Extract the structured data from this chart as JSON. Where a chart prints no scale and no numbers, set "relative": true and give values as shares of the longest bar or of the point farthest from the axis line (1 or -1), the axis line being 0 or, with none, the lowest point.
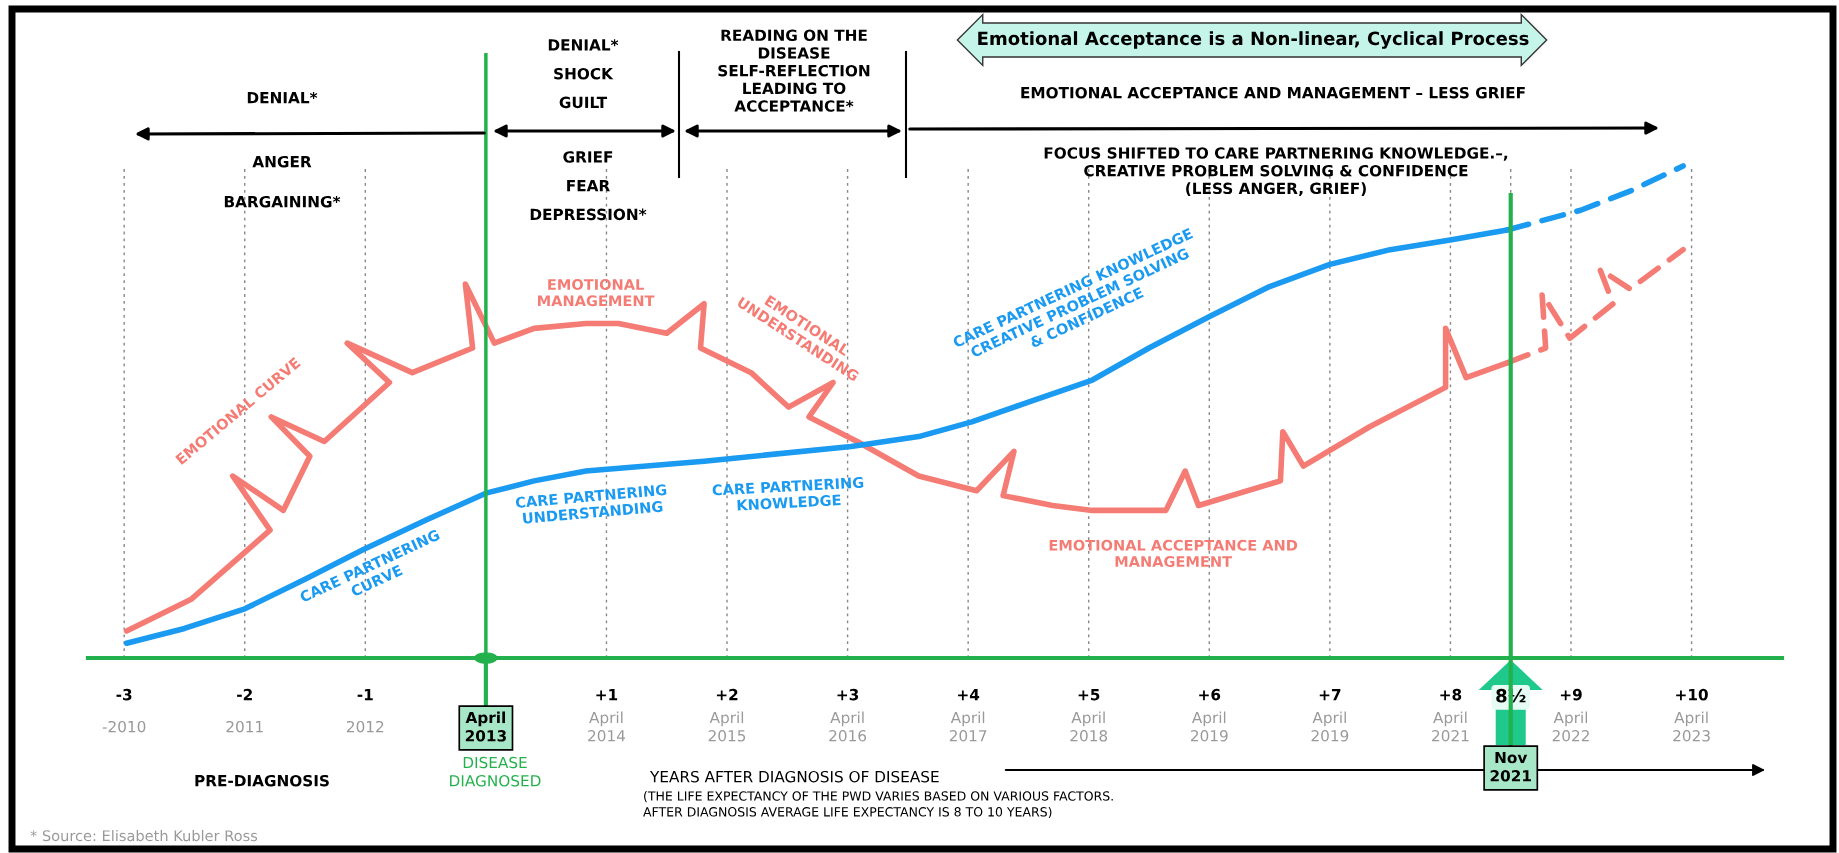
{
  "chart_data": {
    "type": "line",
    "relative": true,
    "xlim": [
      -3.3,
      10.75
    ],
    "xticks": [
      {
        "value": -3,
        "label": "-3"
      },
      {
        "value": -2,
        "label": "-2"
      },
      {
        "value": -1,
        "label": "-1"
      },
      {
        "value": 1,
        "label": "+1"
      },
      {
        "value": 2,
        "label": "+2"
      },
      {
        "value": 3,
        "label": "+3"
      },
      {
        "value": 4,
        "label": "+4"
      },
      {
        "value": 5,
        "label": "+5"
      },
      {
        "value": 6,
        "label": "+6"
      },
      {
        "value": 7,
        "label": "+7"
      },
      {
        "value": 8,
        "label": "+8"
      },
      {
        "value": 8.5,
        "label": "8½"
      },
      {
        "value": 9,
        "label": "+9"
      },
      {
        "value": 10,
        "label": "+10"
      }
    ],
    "grid": "x",
    "series": [
      {
        "name": "EMOTIONAL CURVE",
        "color": "#f47c74",
        "x": [
          -2.98,
          -2.44,
          -1.79,
          -2.1,
          -1.68,
          -1.46,
          -1.78,
          -1.34,
          -0.8,
          -1.15,
          -0.61,
          -0.11,
          -0.17,
          0.07,
          0.4,
          0.83,
          1.1,
          1.5,
          1.81,
          1.78,
          2.2,
          2.51,
          2.88,
          2.68,
          3.08,
          3.59,
          4.07,
          4.38,
          4.29,
          4.7,
          5.03,
          5.64,
          5.8,
          5.91,
          6.59,
          6.61,
          6.78,
          7.33,
          7.96,
          7.96,
          8.13,
          8.47
        ],
        "values": [
          0.055,
          0.12,
          0.26,
          0.37,
          0.3,
          0.41,
          0.49,
          0.44,
          0.56,
          0.64,
          0.58,
          0.63,
          0.76,
          0.64,
          0.67,
          0.68,
          0.68,
          0.66,
          0.72,
          0.63,
          0.58,
          0.51,
          0.56,
          0.49,
          0.44,
          0.37,
          0.34,
          0.42,
          0.33,
          0.31,
          0.3,
          0.3,
          0.38,
          0.31,
          0.36,
          0.46,
          0.39,
          0.47,
          0.55,
          0.67,
          0.57,
          0.6
        ]
      },
      {
        "color": "#f47c74",
        "line_style": "dashed",
        "x": [
          8.47,
          8.79,
          8.76,
          8.99,
          9.35,
          9.24,
          9.49,
          9.93
        ],
        "values": [
          0.6,
          0.63,
          0.74,
          0.65,
          0.72,
          0.79,
          0.75,
          0.83
        ]
      },
      {
        "name": "CARE PARTNERING\nCURVE",
        "color": "#1a9af0",
        "x": [
          -2.98,
          -2.5,
          -2.0,
          -1.5,
          -1.02,
          -0.5,
          0,
          0.4,
          0.83,
          1.81,
          3.03,
          3.59,
          4.03,
          4.5,
          5.03,
          5.5,
          6.01,
          6.5,
          7.0,
          7.5,
          8.01,
          8.47
        ],
        "values": [
          0.03,
          0.06,
          0.1,
          0.16,
          0.22,
          0.28,
          0.335,
          0.36,
          0.38,
          0.4,
          0.43,
          0.45,
          0.48,
          0.52,
          0.565,
          0.63,
          0.695,
          0.755,
          0.8,
          0.83,
          0.85,
          0.87
        ]
      },
      {
        "color": "#1a9af0",
        "line_style": "dashed",
        "x": [
          8.47,
          9.08,
          9.5,
          9.93
        ],
        "values": [
          0.87,
          0.91,
          0.95,
          1.0
        ]
      }
    ],
    "ref_lines": [
      {
        "axis": "x",
        "value": 0,
        "label": "April\n2013",
        "color": "#22b14c"
      },
      {
        "axis": "x",
        "value": 8.5,
        "label": "Nov\n2021",
        "color": "#22b14c"
      }
    ],
    "annotations": [
      "DENIAL*",
      "ANGER",
      "BARGAINING*",
      "DENIAL*\nSHOCK\nGUILT",
      "GRIEF\nFEAR\nDEPRESSION*",
      "READING ON THE\nDISEASE\nSELF-REFLECTION\nLEADING TO\nACCEPTANCE*",
      "Emotional Acceptance is a Non-linear, Cyclical Process",
      "EMOTIONAL ACCEPTANCE AND MANAGEMENT – LESS GRIEF",
      "FOCUS SHIFTED TO CARE PARTNERING KNOWLEDGE.–,\nCREATIVE PROBLEM SOLVING & CONFIDENCE\n(LESS ANGER, GRIEF)",
      "PRE-DIAGNOSIS",
      "DISEASE\nDIAGNOSED",
      "YEARS AFTER DIAGNOSIS OF DISEASE",
      "(THE LIFE EXPECTANCY OF THE PWD VARIES BASED ON VARIOUS FACTORS.\nAFTER DIAGNOSIS AVERAGE LIFE EXPECTANCY IS 8 TO 10 YEARS)",
      "* Source: Elisabeth Kubler Ross",
      "EMOTIONAL\nMANAGEMENT",
      "EMOTIONAL\nUNDERSTANDING",
      "EMOTIONAL ACCEPTANCE AND\nMANAGEMENT",
      "CARE PARTNERING\nUNDERSTANDING",
      "CARE PARTNERING\nKNOWLEDGE",
      "CARE PARTNERING KNOWLEDGE\nCREATIVE PROBLEM SOLVING\n& CONFIDENCE",
      "-2010",
      "2011",
      "2012",
      "April\n2014",
      "April\n2015",
      "April\n2016",
      "April\n2017",
      "April\n2018",
      "April\n2019",
      "April\n2019",
      "April\n2021",
      "April\n2022",
      "April\n2023"
    ]
  }
}
